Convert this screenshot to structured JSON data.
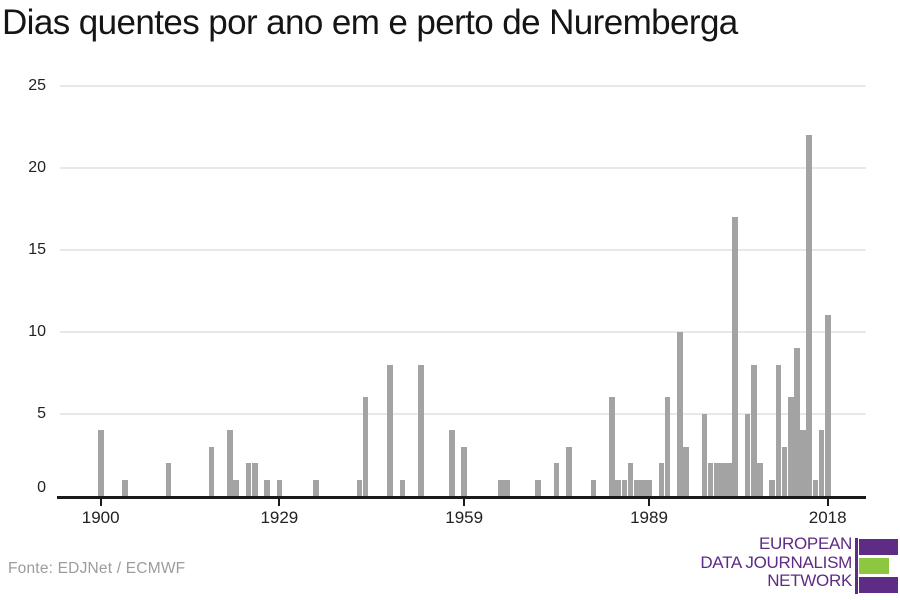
{
  "title": "Dias quentes por ano em e perto de Nuremberga",
  "footer": {
    "source": "Fonte: EDJNet / ECMWF"
  },
  "logo": {
    "line1": "EUROPEAN",
    "line2": "DATA JOURNALISM",
    "line3": "NETWORK",
    "purple": "#5e2b85",
    "green": "#8dc63f"
  },
  "chart_data": {
    "type": "bar",
    "title": "Dias quentes por ano em e perto de Nuremberga",
    "xlabel": "",
    "ylabel": "",
    "x_range": [
      1900,
      2018
    ],
    "ylim": [
      0,
      25
    ],
    "ytick_values": [
      0,
      5,
      10,
      15,
      20,
      25
    ],
    "xtick_values": [
      1900,
      1929,
      1959,
      1989,
      2018
    ],
    "grid": "horizontal",
    "legend_position": "none",
    "bar_color": "#a3a3a3",
    "unlisted_years_value": 0,
    "series": [
      {
        "name": "dias quentes",
        "points": [
          [
            1900,
            4
          ],
          [
            1904,
            1
          ],
          [
            1911,
            2
          ],
          [
            1918,
            3
          ],
          [
            1921,
            4
          ],
          [
            1922,
            1
          ],
          [
            1924,
            2
          ],
          [
            1925,
            2
          ],
          [
            1927,
            1
          ],
          [
            1929,
            1
          ],
          [
            1935,
            1
          ],
          [
            1942,
            1
          ],
          [
            1943,
            6
          ],
          [
            1947,
            8
          ],
          [
            1949,
            1
          ],
          [
            1952,
            8
          ],
          [
            1957,
            4
          ],
          [
            1959,
            3
          ],
          [
            1965,
            1
          ],
          [
            1966,
            1
          ],
          [
            1971,
            1
          ],
          [
            1974,
            2
          ],
          [
            1976,
            3
          ],
          [
            1980,
            1
          ],
          [
            1983,
            6
          ],
          [
            1984,
            1
          ],
          [
            1985,
            1
          ],
          [
            1986,
            2
          ],
          [
            1987,
            1
          ],
          [
            1988,
            1
          ],
          [
            1989,
            1
          ],
          [
            1991,
            2
          ],
          [
            1992,
            6
          ],
          [
            1994,
            10
          ],
          [
            1995,
            3
          ],
          [
            1998,
            5
          ],
          [
            1999,
            2
          ],
          [
            2000,
            2
          ],
          [
            2001,
            2
          ],
          [
            2002,
            2
          ],
          [
            2003,
            17
          ],
          [
            2005,
            5
          ],
          [
            2006,
            8
          ],
          [
            2007,
            2
          ],
          [
            2009,
            1
          ],
          [
            2010,
            8
          ],
          [
            2011,
            3
          ],
          [
            2012,
            6
          ],
          [
            2013,
            9
          ],
          [
            2014,
            4
          ],
          [
            2015,
            22
          ],
          [
            2016,
            1
          ],
          [
            2017,
            4
          ],
          [
            2018,
            11
          ]
        ]
      }
    ]
  }
}
